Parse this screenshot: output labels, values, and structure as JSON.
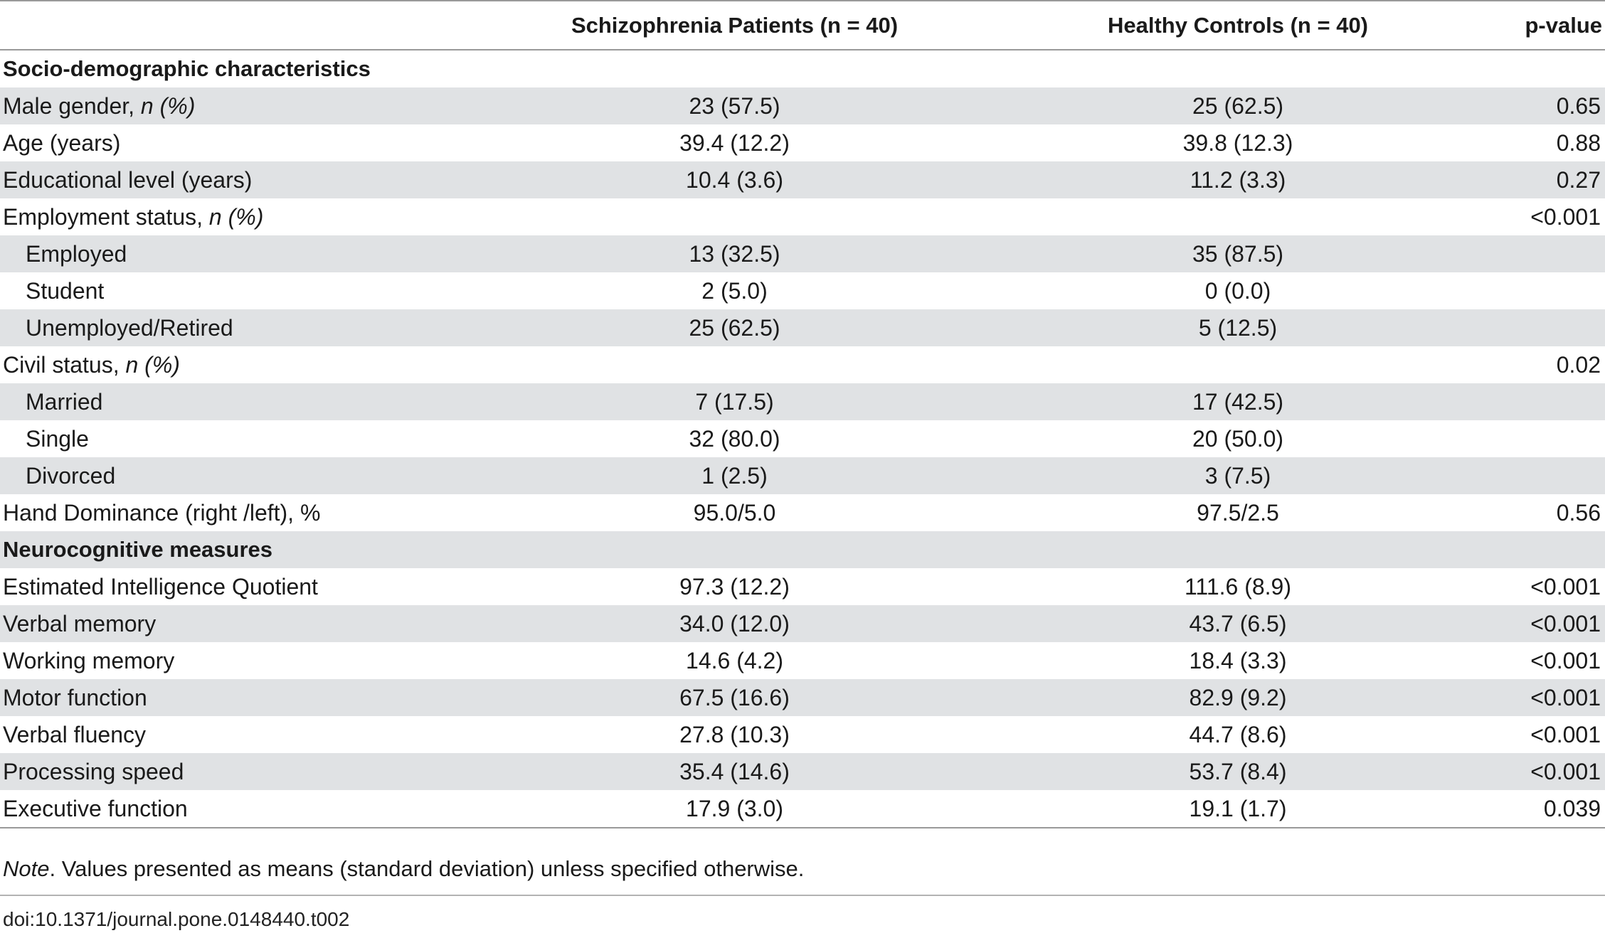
{
  "table": {
    "columns": [
      "",
      "Schizophrenia Patients (n = 40)",
      "Healthy Controls (n = 40)",
      "p-value"
    ],
    "rows": [
      {
        "label": "Socio-demographic characteristics",
        "label_italic": "",
        "sz": "",
        "hc": "",
        "p": "",
        "section": true,
        "indent": false,
        "shaded": false
      },
      {
        "label": "Male gender, ",
        "label_italic": "n (%)",
        "sz": "23 (57.5)",
        "hc": "25 (62.5)",
        "p": "0.65",
        "section": false,
        "indent": false,
        "shaded": true
      },
      {
        "label": "Age (years)",
        "label_italic": "",
        "sz": "39.4 (12.2)",
        "hc": "39.8 (12.3)",
        "p": "0.88",
        "section": false,
        "indent": false,
        "shaded": false
      },
      {
        "label": "Educational level (years)",
        "label_italic": "",
        "sz": "10.4 (3.6)",
        "hc": "11.2 (3.3)",
        "p": "0.27",
        "section": false,
        "indent": false,
        "shaded": true
      },
      {
        "label": "Employment status, ",
        "label_italic": "n (%)",
        "sz": "",
        "hc": "",
        "p": "<0.001",
        "section": false,
        "indent": false,
        "shaded": false
      },
      {
        "label": "Employed",
        "label_italic": "",
        "sz": "13 (32.5)",
        "hc": "35 (87.5)",
        "p": "",
        "section": false,
        "indent": true,
        "shaded": true
      },
      {
        "label": "Student",
        "label_italic": "",
        "sz": "2 (5.0)",
        "hc": "0 (0.0)",
        "p": "",
        "section": false,
        "indent": true,
        "shaded": false
      },
      {
        "label": "Unemployed/Retired",
        "label_italic": "",
        "sz": "25 (62.5)",
        "hc": "5 (12.5)",
        "p": "",
        "section": false,
        "indent": true,
        "shaded": true
      },
      {
        "label": "Civil status, ",
        "label_italic": "n (%)",
        "sz": "",
        "hc": "",
        "p": "0.02",
        "section": false,
        "indent": false,
        "shaded": false
      },
      {
        "label": "Married",
        "label_italic": "",
        "sz": "7 (17.5)",
        "hc": "17 (42.5)",
        "p": "",
        "section": false,
        "indent": true,
        "shaded": true
      },
      {
        "label": "Single",
        "label_italic": "",
        "sz": "32 (80.0)",
        "hc": "20 (50.0)",
        "p": "",
        "section": false,
        "indent": true,
        "shaded": false
      },
      {
        "label": "Divorced",
        "label_italic": "",
        "sz": "1 (2.5)",
        "hc": "3 (7.5)",
        "p": "",
        "section": false,
        "indent": true,
        "shaded": true
      },
      {
        "label": "Hand Dominance (right /left), %",
        "label_italic": "",
        "sz": "95.0/5.0",
        "hc": "97.5/2.5",
        "p": "0.56",
        "section": false,
        "indent": false,
        "shaded": false
      },
      {
        "label": "Neurocognitive measures",
        "label_italic": "",
        "sz": "",
        "hc": "",
        "p": "",
        "section": true,
        "indent": false,
        "shaded": true
      },
      {
        "label": "Estimated Intelligence Quotient",
        "label_italic": "",
        "sz": "97.3 (12.2)",
        "hc": "111.6 (8.9)",
        "p": "<0.001",
        "section": false,
        "indent": false,
        "shaded": false
      },
      {
        "label": "Verbal memory",
        "label_italic": "",
        "sz": "34.0 (12.0)",
        "hc": "43.7 (6.5)",
        "p": "<0.001",
        "section": false,
        "indent": false,
        "shaded": true
      },
      {
        "label": "Working memory",
        "label_italic": "",
        "sz": "14.6 (4.2)",
        "hc": "18.4 (3.3)",
        "p": "<0.001",
        "section": false,
        "indent": false,
        "shaded": false
      },
      {
        "label": "Motor function",
        "label_italic": "",
        "sz": "67.5 (16.6)",
        "hc": "82.9 (9.2)",
        "p": "<0.001",
        "section": false,
        "indent": false,
        "shaded": true
      },
      {
        "label": "Verbal fluency",
        "label_italic": "",
        "sz": "27.8 (10.3)",
        "hc": "44.7 (8.6)",
        "p": "<0.001",
        "section": false,
        "indent": false,
        "shaded": false
      },
      {
        "label": "Processing speed",
        "label_italic": "",
        "sz": "35.4 (14.6)",
        "hc": "53.7 (8.4)",
        "p": "<0.001",
        "section": false,
        "indent": false,
        "shaded": true
      },
      {
        "label": "Executive function",
        "label_italic": "",
        "sz": "17.9 (3.0)",
        "hc": "19.1 (1.7)",
        "p": "0.039",
        "section": false,
        "indent": false,
        "shaded": false
      }
    ]
  },
  "note": {
    "lead": "Note",
    "text": ". Values presented as means (standard deviation) unless specified otherwise."
  },
  "doi": "doi:10.1371/journal.pone.0148440.t002",
  "colors": {
    "row_shade": "#e0e2e4",
    "rule": "#999999"
  }
}
